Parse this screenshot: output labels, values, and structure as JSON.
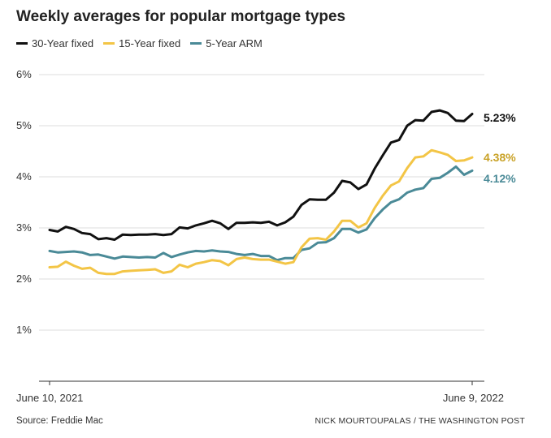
{
  "header": {
    "title": "Weekly averages for popular mortgage types"
  },
  "footer": {
    "source": "Source: Freddie Mac",
    "credit": "NICK MOURTOUPALAS / THE WASHINGTON POST"
  },
  "chart_data": {
    "type": "line",
    "title": "Weekly averages for popular mortgage types",
    "xlabel": "",
    "ylabel": "",
    "x_tick_labels": [
      "June 10, 2021",
      "June 9, 2022"
    ],
    "y_ticks": [
      1,
      2,
      3,
      4,
      5,
      6
    ],
    "y_tick_labels": [
      "1%",
      "2%",
      "3%",
      "4%",
      "5%",
      "6%"
    ],
    "ylim": [
      0,
      6
    ],
    "grid": true,
    "legend_position": "top-left",
    "x": [
      "2021-06-10",
      "2021-06-17",
      "2021-06-24",
      "2021-07-01",
      "2021-07-08",
      "2021-07-15",
      "2021-07-22",
      "2021-07-29",
      "2021-08-05",
      "2021-08-12",
      "2021-08-19",
      "2021-08-26",
      "2021-09-02",
      "2021-09-09",
      "2021-09-16",
      "2021-09-23",
      "2021-09-30",
      "2021-10-07",
      "2021-10-14",
      "2021-10-21",
      "2021-10-28",
      "2021-11-04",
      "2021-11-10",
      "2021-11-18",
      "2021-11-24",
      "2021-12-02",
      "2021-12-09",
      "2021-12-16",
      "2021-12-23",
      "2021-12-30",
      "2022-01-06",
      "2022-01-13",
      "2022-01-20",
      "2022-01-27",
      "2022-02-03",
      "2022-02-10",
      "2022-02-17",
      "2022-02-24",
      "2022-03-03",
      "2022-03-10",
      "2022-03-17",
      "2022-03-24",
      "2022-03-31",
      "2022-04-07",
      "2022-04-14",
      "2022-04-21",
      "2022-04-28",
      "2022-05-05",
      "2022-05-12",
      "2022-05-19",
      "2022-05-26",
      "2022-06-02",
      "2022-06-09"
    ],
    "series": [
      {
        "name": "30-Year fixed",
        "color": "#111111",
        "end_label": "5.23%",
        "values": [
          2.96,
          2.93,
          3.02,
          2.98,
          2.9,
          2.88,
          2.78,
          2.8,
          2.77,
          2.87,
          2.86,
          2.87,
          2.87,
          2.88,
          2.86,
          2.88,
          3.01,
          2.99,
          3.05,
          3.09,
          3.14,
          3.09,
          2.98,
          3.1,
          3.1,
          3.11,
          3.1,
          3.12,
          3.05,
          3.11,
          3.22,
          3.45,
          3.56,
          3.55,
          3.55,
          3.69,
          3.92,
          3.89,
          3.76,
          3.85,
          4.16,
          4.42,
          4.67,
          4.72,
          5.0,
          5.11,
          5.1,
          5.27,
          5.3,
          5.25,
          5.1,
          5.09,
          5.23
        ]
      },
      {
        "name": "15-Year fixed",
        "color": "#f3c546",
        "end_label": "4.38%",
        "values": [
          2.23,
          2.24,
          2.34,
          2.26,
          2.2,
          2.22,
          2.12,
          2.1,
          2.1,
          2.15,
          2.16,
          2.17,
          2.18,
          2.19,
          2.12,
          2.15,
          2.28,
          2.23,
          2.3,
          2.33,
          2.37,
          2.35,
          2.27,
          2.39,
          2.42,
          2.39,
          2.38,
          2.38,
          2.34,
          2.3,
          2.33,
          2.62,
          2.79,
          2.8,
          2.77,
          2.93,
          3.14,
          3.14,
          3.01,
          3.09,
          3.39,
          3.63,
          3.83,
          3.91,
          4.17,
          4.38,
          4.4,
          4.52,
          4.48,
          4.43,
          4.31,
          4.32,
          4.38
        ]
      },
      {
        "name": "5-Year ARM",
        "color": "#4a8a97",
        "end_label": "4.12%",
        "values": [
          2.55,
          2.52,
          2.53,
          2.54,
          2.52,
          2.47,
          2.48,
          2.44,
          2.4,
          2.44,
          2.43,
          2.42,
          2.43,
          2.42,
          2.51,
          2.43,
          2.48,
          2.52,
          2.55,
          2.54,
          2.56,
          2.54,
          2.53,
          2.49,
          2.47,
          2.49,
          2.45,
          2.45,
          2.37,
          2.41,
          2.41,
          2.57,
          2.6,
          2.71,
          2.72,
          2.8,
          2.98,
          2.98,
          2.91,
          2.97,
          3.19,
          3.36,
          3.5,
          3.56,
          3.69,
          3.75,
          3.78,
          3.96,
          3.98,
          4.08,
          4.2,
          4.04,
          4.12
        ]
      }
    ]
  }
}
